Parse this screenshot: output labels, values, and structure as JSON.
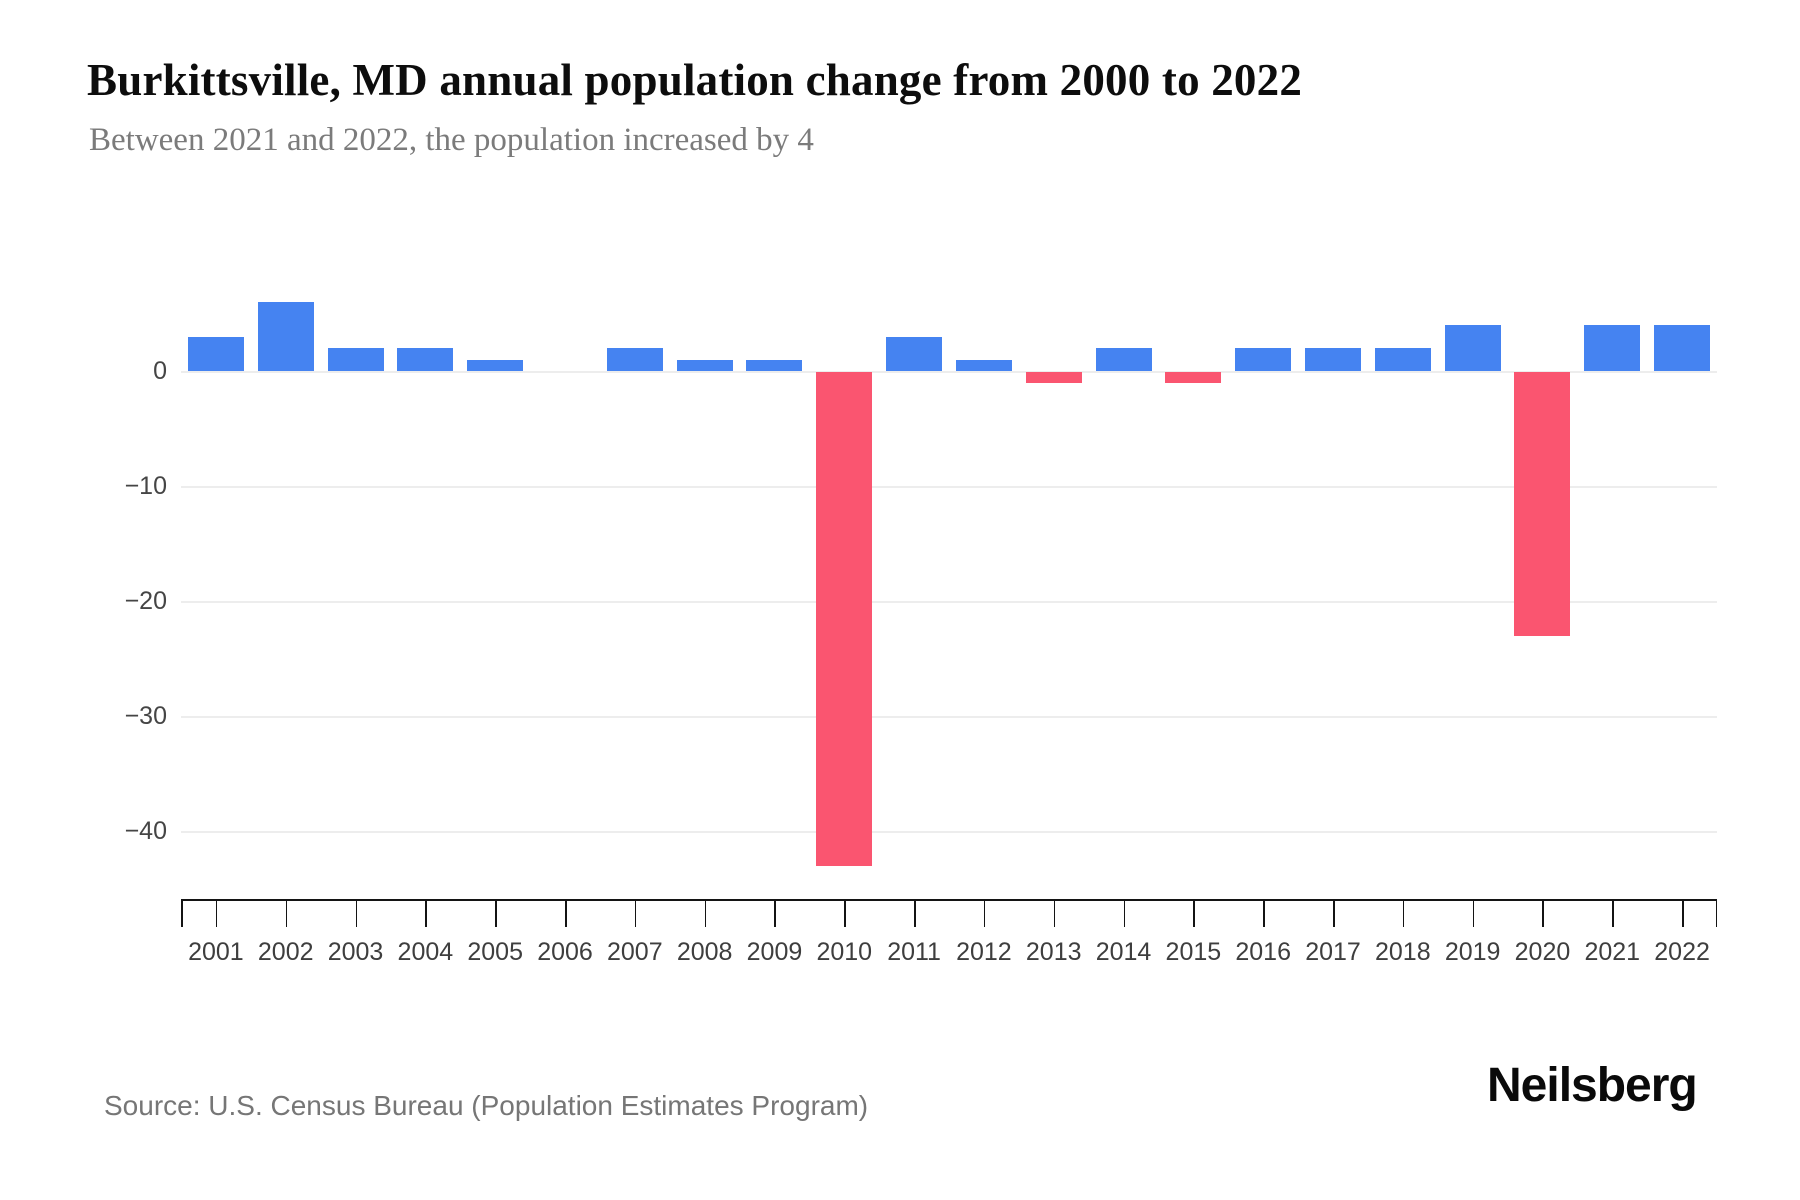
{
  "title": "Burkittsville, MD annual population change from 2000 to 2022",
  "subtitle": "Between 2021 and 2022, the population increased by 4",
  "source": "Source: U.S. Census Bureau (Population Estimates Program)",
  "logo": {
    "text": "Neilsberg"
  },
  "colors": {
    "positive_bar": "#4583F1",
    "negative_bar": "#FA5570",
    "gridline": "#ededed",
    "axis": "#141414",
    "tick_label": "#3e3e3e",
    "title_text": "#0d0d0d",
    "subtitle_text": "#7b7b7b",
    "source_text": "#767676"
  },
  "chart_data": {
    "type": "bar",
    "title": "Burkittsville, MD annual population change from 2000 to 2022",
    "subtitle": "Between 2021 and 2022, the population increased by 4",
    "xlabel": "",
    "ylabel": "",
    "categories": [
      "2001",
      "2002",
      "2003",
      "2004",
      "2005",
      "2006",
      "2007",
      "2008",
      "2009",
      "2010",
      "2011",
      "2012",
      "2013",
      "2014",
      "2015",
      "2016",
      "2017",
      "2018",
      "2019",
      "2020",
      "2021",
      "2022"
    ],
    "values": [
      3,
      6,
      2,
      2,
      1,
      0,
      2,
      1,
      1,
      -43,
      3,
      1,
      -1,
      2,
      -1,
      2,
      2,
      2,
      4,
      -23,
      4,
      4
    ],
    "yticks": [
      0,
      -10,
      -20,
      -30,
      -40
    ],
    "ytick_labels": [
      "0",
      "−10",
      "−20",
      "−30",
      "−40"
    ],
    "ylim": [
      -46,
      7
    ],
    "grid": "horizontal-light",
    "legend": "none",
    "bar_colors": {
      "positive": "#4583F1",
      "negative": "#FA5570"
    },
    "source": "Source: U.S. Census Bureau (Population Estimates Program)",
    "brand": "Neilsberg"
  }
}
